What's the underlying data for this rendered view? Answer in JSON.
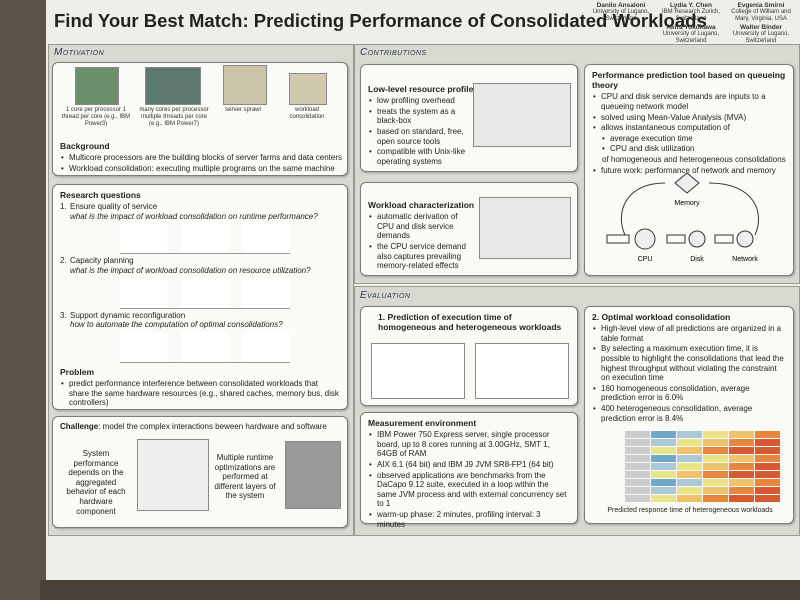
{
  "header": {
    "title": "Find Your Best Match: Predicting Performance of Consolidated Workloads",
    "authors": [
      {
        "name": "Danilo Ansaloni",
        "affiliation": "University of Lugano, Switzerland"
      },
      {
        "name": "Lydia Y. Chen",
        "affiliation": "IBM Research Zurich, Switzerland"
      },
      {
        "name": "Evgenia Smirni",
        "affiliation": "College of William and Mary, Virginia, USA"
      },
      {
        "name": "Akira Yokokawa",
        "affiliation": "University of Lugano, Switzerland"
      },
      {
        "name": "Walter Binder",
        "affiliation": "University of Lugano, Switzerland"
      }
    ]
  },
  "motivation": {
    "heading": "Motivation",
    "figure_labels": [
      "1 core per processor 1 thread per core (e.g., IBM Power3)",
      "many cores per processor multiple threads per core (e.g., IBM Power7)",
      "server sprawl",
      "workload consolidation"
    ],
    "background_title": "Background",
    "bullets": [
      "Multicore processors are the building blocks of server farms and data centers",
      "Workload consolidation: executing multiple programs on the same machine"
    ]
  },
  "research": {
    "heading": "Research questions",
    "items": [
      {
        "title": "Ensure quality of service",
        "question": "what is the impact of workload consolidation on runtime performance?"
      },
      {
        "title": "Capacity planning",
        "question": "what is the impact of workload consolidation on resource utilization?"
      },
      {
        "title": "Support dynamic reconfiguration",
        "question": "how to automate the computation of optimal consolidations?"
      }
    ],
    "problem_title": "Problem",
    "problem_bullets": [
      "predict performance interference between consolidated workloads that share the same hardware resources (e.g., shared caches, memory bus, disk controllers)"
    ]
  },
  "challenge": {
    "label": "Challenge",
    "text": ": model the complex interactions beween hardware and software",
    "left": "System performance depends on the aggregated behavior of each hardware component",
    "right": "Multiple runtime optimizations are performed at different layers of the system"
  },
  "contributions": {
    "heading": "Contributions",
    "profiler": {
      "title": "Low-level resource profiler",
      "bullets": [
        "low profiling overhead",
        "treats the system as a black-box",
        "based on standard, free, open source tools",
        "compatible with Unix-like operating systems"
      ]
    },
    "characterization": {
      "title": "Workload characterization",
      "bullets": [
        "automatic derivation of CPU and disk service demands",
        "the CPU service demand also captures prevailing memory-related effects"
      ]
    },
    "tool": {
      "title": "Performance prediction tool based on queueing theory",
      "bullets": [
        "CPU and disk service demands are inputs to a queueing network model",
        "solved using Mean-Value Analysis (MVA)",
        "allows instantaneous computation of"
      ],
      "subbullets": [
        "average execution time",
        "CPU and disk utilization"
      ],
      "sub_note": "of homogeneous and heterogeneous consolidations",
      "last_bullets": [
        "future work: performance of network and memory"
      ],
      "figure_labels": [
        "Memory",
        "CPU",
        "Disk",
        "Network"
      ]
    }
  },
  "evaluation": {
    "heading": "Evaluation",
    "prediction": {
      "title": "1. Prediction of execution time of homogeneous and heterogeneous workloads"
    },
    "optimal": {
      "title": "2. Optimal workload consolidation",
      "bullets": [
        "High-level view of all predictions are organized in a table format",
        "By selecting a maximum execution time, it is possible to highlight the consolidations that lead the highest throughput without violating the constraint on execution time",
        "160 homogeneous consolidation, average prediction error is 6.0%",
        "400 heterogeneous consolidation, average prediction error is 8.4%"
      ],
      "caption": "Predicted response time of heterogeneous workloads"
    },
    "measurement": {
      "title": "Measurement environment",
      "bullets": [
        "IBM Power 750 Express server, single processor board, up to 8 cores running at 3.00GHz, SMT 1, 64GB of RAM",
        "AIX 6.1 (64 bit) and IBM J9 JVM SR8-FP1 (64 bit)",
        "observed applications are benchmarks from the DaCapo 9.12 suite, executed in a loop within the same JVM process and with external concurrency set to 1",
        "warm-up phase: 2 minutes, profiling interval: 3 minutes"
      ]
    }
  }
}
